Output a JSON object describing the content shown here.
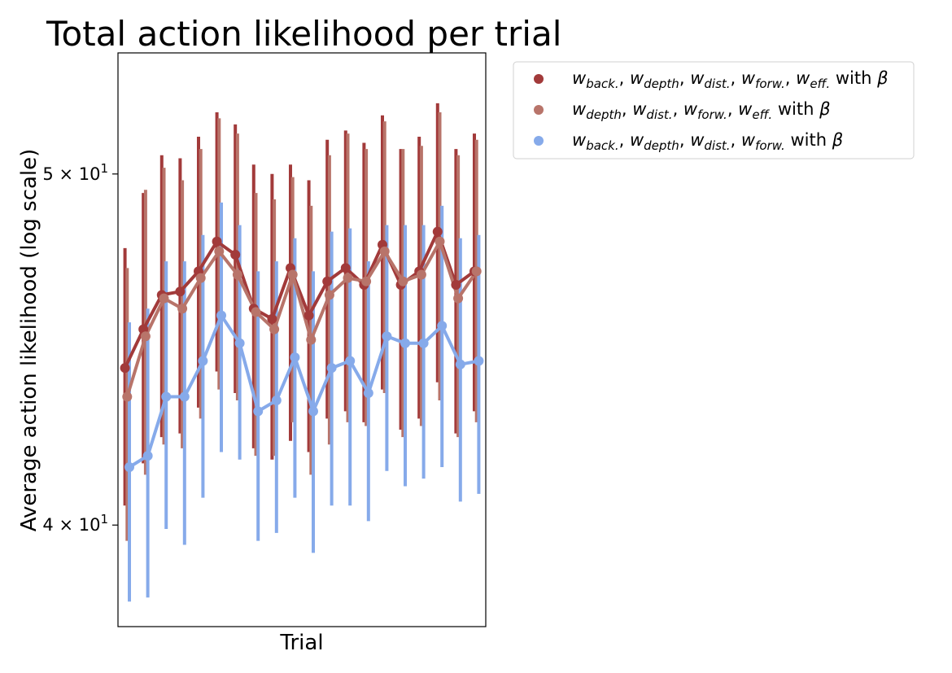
{
  "chart_data": {
    "type": "line",
    "title": "Total action likelihood per trial",
    "xlabel": "Trial",
    "ylabel": "Average action likelihood (log scale)",
    "yscale": "log",
    "ylim": [
      37.5,
      54
    ],
    "xlim": [
      -0.5,
      19.5
    ],
    "yticks": [
      {
        "value": 40,
        "mantissa": "4",
        "base": "10",
        "exp": "1"
      },
      {
        "value": 50,
        "mantissa": "5",
        "base": "10",
        "exp": "1"
      }
    ],
    "grid": false,
    "legend_placement": "outside-top-right",
    "x": [
      0,
      1,
      2,
      3,
      4,
      5,
      6,
      7,
      8,
      9,
      10,
      11,
      12,
      13,
      14,
      15,
      16,
      17,
      18,
      19
    ],
    "series": [
      {
        "name_parts": {
          "terms": [
            {
              "base": "w",
              "sub": "back."
            },
            {
              "base": "w",
              "sub": "depth"
            },
            {
              "base": "w",
              "sub": "dist."
            },
            {
              "base": "w",
              "sub": "forw."
            },
            {
              "base": "w",
              "sub": "eff."
            }
          ],
          "suffix": "with β"
        },
        "color": "#a23a3a",
        "offset": -0.12,
        "values": [
          44.2,
          45.3,
          46.3,
          46.4,
          47.0,
          47.9,
          47.5,
          45.9,
          45.6,
          47.1,
          45.7,
          46.7,
          47.1,
          46.6,
          47.8,
          46.6,
          47.0,
          48.2,
          46.6,
          47.0
        ],
        "ci_low": [
          40.5,
          41.6,
          42.3,
          42.4,
          43.1,
          44.1,
          43.5,
          42.0,
          41.7,
          42.2,
          41.9,
          42.8,
          43.0,
          42.7,
          43.6,
          42.5,
          42.8,
          43.8,
          42.4,
          43.0
        ],
        "ci_high": [
          47.7,
          49.4,
          50.6,
          50.5,
          51.2,
          52.0,
          51.6,
          50.3,
          50.0,
          50.3,
          49.8,
          51.1,
          51.4,
          51.0,
          51.9,
          50.8,
          51.2,
          52.3,
          50.8,
          51.3
        ]
      },
      {
        "name_parts": {
          "terms": [
            {
              "base": "w",
              "sub": "depth"
            },
            {
              "base": "w",
              "sub": "dist."
            },
            {
              "base": "w",
              "sub": "forw."
            },
            {
              "base": "w",
              "sub": "eff."
            }
          ],
          "suffix": "with β"
        },
        "color": "#b8746a",
        "offset": 0,
        "values": [
          43.4,
          45.1,
          46.2,
          45.9,
          46.8,
          47.6,
          46.9,
          45.8,
          45.3,
          46.9,
          45.0,
          46.3,
          46.8,
          46.7,
          47.6,
          46.7,
          46.9,
          47.9,
          46.2,
          47.0
        ],
        "ci_low": [
          39.6,
          41.3,
          42.1,
          42.0,
          42.8,
          43.6,
          43.3,
          41.8,
          41.8,
          42.7,
          41.3,
          42.1,
          42.7,
          42.6,
          43.5,
          42.3,
          42.6,
          43.3,
          42.3,
          42.7
        ],
        "ci_high": [
          47.1,
          49.5,
          50.2,
          49.8,
          50.8,
          51.8,
          51.3,
          49.4,
          49.2,
          49.9,
          49.0,
          50.6,
          51.3,
          50.8,
          51.7,
          50.8,
          50.9,
          52.0,
          50.6,
          51.1
        ]
      },
      {
        "name_parts": {
          "terms": [
            {
              "base": "w",
              "sub": "back."
            },
            {
              "base": "w",
              "sub": "depth"
            },
            {
              "base": "w",
              "sub": "dist."
            },
            {
              "base": "w",
              "sub": "forw."
            }
          ],
          "suffix": "with β"
        },
        "color": "#86aaea",
        "offset": 0.12,
        "values": [
          41.5,
          41.8,
          43.4,
          43.4,
          44.4,
          45.7,
          44.9,
          43.0,
          43.3,
          44.5,
          43.0,
          44.2,
          44.4,
          43.5,
          45.1,
          44.9,
          44.9,
          45.4,
          44.3,
          44.4
        ],
        "ci_low": [
          38.1,
          38.2,
          39.9,
          39.5,
          40.7,
          41.9,
          41.7,
          39.6,
          39.8,
          40.7,
          39.3,
          40.5,
          40.5,
          40.1,
          41.4,
          41.0,
          41.2,
          41.5,
          40.6,
          40.8
        ],
        "ci_high": [
          45.5,
          45.9,
          47.3,
          47.3,
          48.1,
          49.1,
          48.4,
          47.0,
          47.3,
          48.0,
          47.0,
          48.2,
          48.3,
          47.3,
          48.4,
          48.4,
          48.4,
          49.0,
          48.0,
          48.1
        ]
      }
    ]
  }
}
